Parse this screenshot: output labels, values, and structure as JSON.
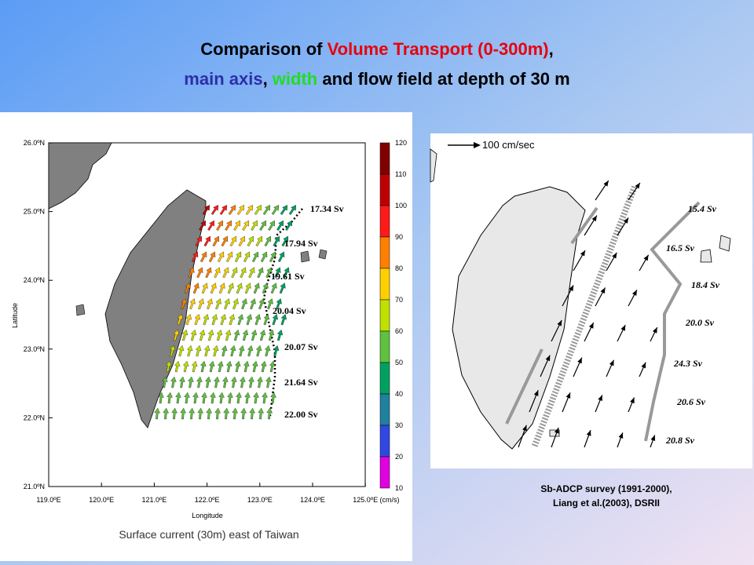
{
  "title": [
    [
      {
        "text": "Comparison of ",
        "color": "#000000"
      },
      {
        "text": "Volume Transport (0-300m)",
        "color": "#e8000b"
      },
      {
        "text": ",",
        "color": "#000000"
      }
    ],
    [
      {
        "text": "main axis",
        "color": "#2e2ea8"
      },
      {
        "text": ", ",
        "color": "#000000"
      },
      {
        "text": "width",
        "color": "#22dd22"
      },
      {
        "text": " and flow field at depth of 30 m",
        "color": "#000000"
      }
    ]
  ],
  "left_map": {
    "lat_ticks": [
      "26.0ºN",
      "25.0ºN",
      "24.0ºN",
      "23.0ºN",
      "22.0ºN",
      "21.0ºN"
    ],
    "lon_ticks": [
      "119.0ºE",
      "120.0ºE",
      "121.0ºE",
      "122.0ºE",
      "123.0ºE",
      "124.0ºE",
      "125.0ºE"
    ],
    "y_label": "Latitude",
    "x_label": "Longitude",
    "colorbar_ticks": [
      120,
      110,
      100,
      90,
      80,
      70,
      60,
      50,
      40,
      30,
      20,
      10
    ],
    "colorbar_unit": "(cm/s)",
    "transport_labels": [
      "17.34 Sv",
      "17.94 Sv",
      "19.61 Sv",
      "20.04 Sv",
      "20.07 Sv",
      "21.64 Sv",
      "22.00 Sv"
    ],
    "caption": "Surface current (30m) east of Taiwan"
  },
  "right_map": {
    "scale_label": "100 cm/sec",
    "transport_labels": [
      "15.4 Sv",
      "16.5 Sv",
      "18.4 Sv",
      "20.0 Sv",
      "24.3 Sv",
      "20.6 Sv",
      "20.8 Sv"
    ],
    "caption": [
      "Sb-ADCP survey (1991-2000),",
      "Liang et al.(2003), DSRII"
    ]
  }
}
